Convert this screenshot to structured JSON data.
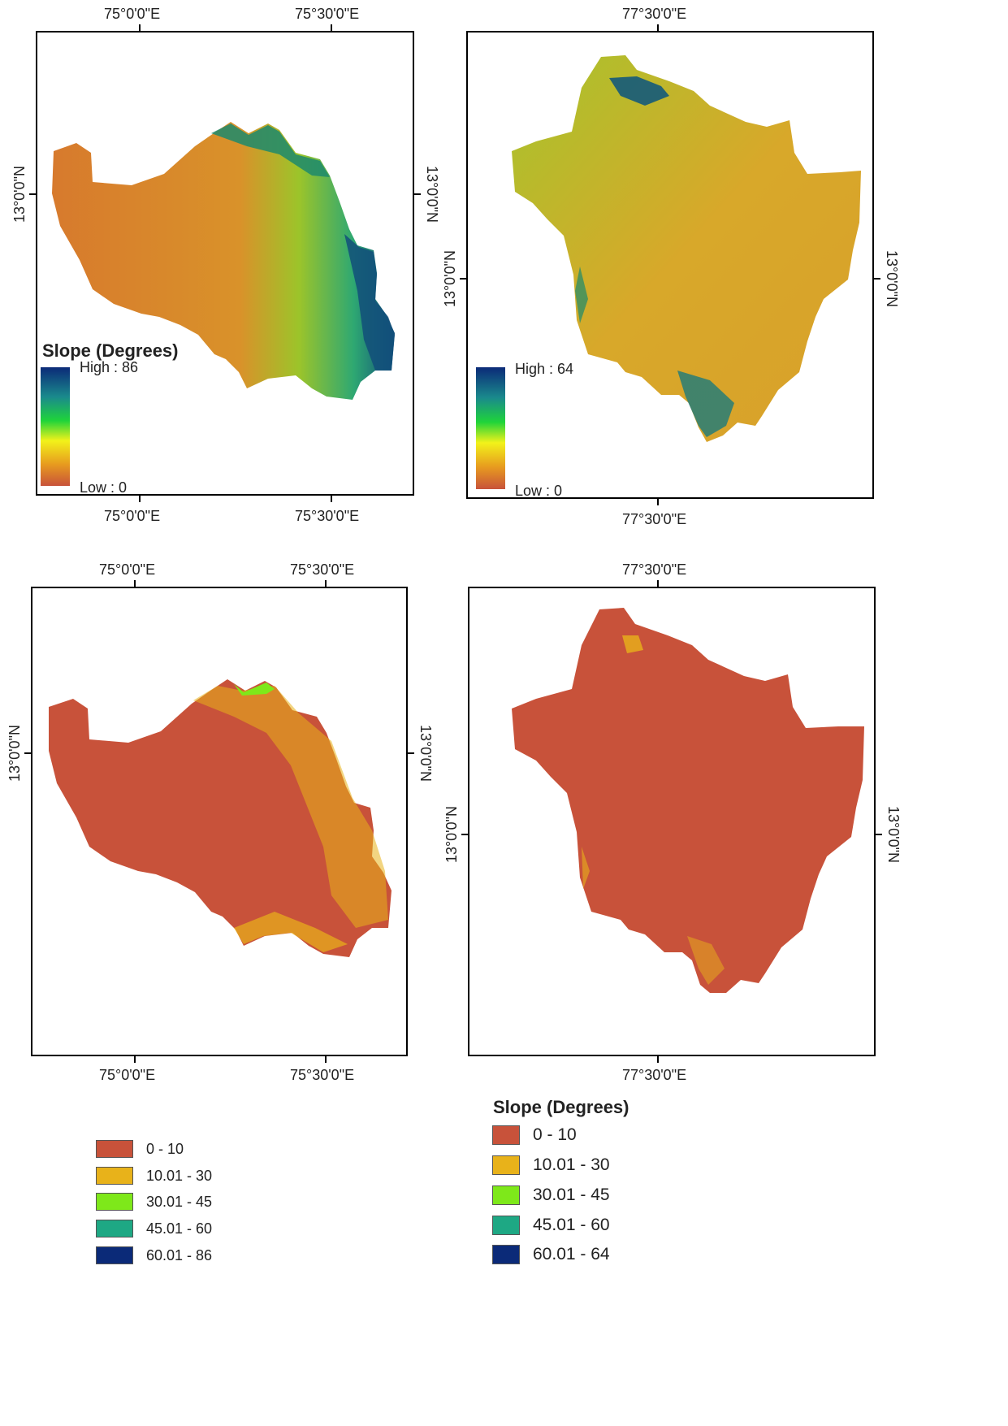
{
  "palette": {
    "c0": "#c8523a",
    "c1": "#e8b21a",
    "c2": "#7ee81a",
    "c3": "#1ea884",
    "c4": "#0b2a78",
    "ramp": [
      "#0b2a78",
      "#1a8a8c",
      "#1fd43a",
      "#f2f21a",
      "#e79a1f",
      "#c8523a"
    ]
  },
  "panels": {
    "top_left": {
      "top_ticks": [
        "75°0'0\"E",
        "75°30'0\"E"
      ],
      "bottom_ticks": [
        "75°0'0\"E",
        "75°30'0\"E"
      ],
      "left_tick": "13°0'0\"N",
      "right_tick": "13°0'0\"N",
      "legend": {
        "title": "Slope (Degrees)",
        "high": "High : 86",
        "low": "Low : 0"
      }
    },
    "top_right": {
      "top_tick": "77°30'0\"E",
      "bottom_tick": "77°30'0\"E",
      "left_tick": "13°0'0\"N",
      "right_tick": "13°0'0\"N",
      "legend": {
        "high": "High : 64",
        "low": "Low : 0"
      }
    },
    "bottom_left": {
      "top_ticks": [
        "75°0'0\"E",
        "75°30'0\"E"
      ],
      "bottom_ticks": [
        "75°0'0\"E",
        "75°30'0\"E"
      ],
      "left_tick": "13°0'0\"N",
      "right_tick": "13°0'0\"N"
    },
    "bottom_right": {
      "top_tick": "77°30'0\"E",
      "bottom_tick": "77°30'0\"E",
      "left_tick": "13°0'0\"N",
      "right_tick": "13°0'0\"N"
    }
  },
  "legend_left": {
    "classes": [
      "0 - 10",
      "10.01 - 30",
      "30.01 - 45",
      "45.01 - 60",
      "60.01 - 86"
    ]
  },
  "legend_right": {
    "title": "Slope (Degrees)",
    "classes": [
      "0 - 10",
      "10.01 - 30",
      "30.01 - 45",
      "45.01 - 60",
      "60.01 - 64"
    ]
  }
}
